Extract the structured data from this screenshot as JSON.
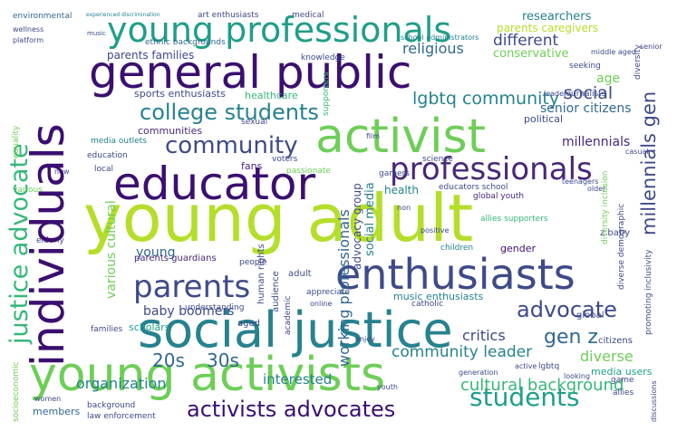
{
  "palette": {
    "background": "#ffffff",
    "colors": [
      "#3b0f70",
      "#482878",
      "#3e4a89",
      "#31688e",
      "#26828e",
      "#1f9e89",
      "#35b779",
      "#6ece58",
      "#b5de2b",
      "#d8e219"
    ]
  },
  "words": {
    "young_adult": "young adult",
    "social_justice": "social justice",
    "general_public": "general public",
    "young_activists": "young activists",
    "enthusiasts": "enthusiasts",
    "activist": "activist",
    "educator": "educator",
    "individuals": "individuals",
    "young_professionals": "young professionals",
    "professionals": "professionals",
    "justice_advocate": "justice advocate",
    "parents": "parents",
    "students": "students",
    "community": "community",
    "college_students": "college students",
    "activists_advocates": "activists advocates",
    "advocate": "advocate",
    "gen_z": "gen z",
    "lgbtq_community": "lgbtq community",
    "social": "social",
    "millennials_gen": "millennials gen",
    "twenties": "20s",
    "thirties": "30s",
    "cultural_background": "cultural background",
    "community_leader": "community leader",
    "organization": "organization",
    "interested": "interested",
    "critics": "critics",
    "diverse": "diverse",
    "different": "different",
    "conservative": "conservative",
    "religious": "religious",
    "senior_citizens": "senior citizens",
    "age": "age",
    "millennials": "millennials",
    "parents_caregivers": "parents caregivers",
    "researchers": "researchers",
    "parents_families": "parents families",
    "healthcare": "healthcare",
    "sports_enthusiasts": "sports enthusiasts",
    "communities": "communities",
    "fans": "fans",
    "young": "young",
    "baby_boomers": "baby boomers",
    "scholars": "scholars",
    "parents_guardians": "parents guardians",
    "working_professionals": "working professionals",
    "social_media": "social media",
    "advocacy_group": "advocacy group",
    "music_enthusiasts": "music enthusiasts",
    "gender": "gender",
    "political": "political",
    "health": "health",
    "various_cultural": "various cultural",
    "media_users": "media users",
    "citizens": "citizens",
    "members": "members",
    "law_enforcement": "law enforcement",
    "educators_school": "educators school",
    "global_youth": "global youth",
    "z_baby": "z baby",
    "allies_supporters": "allies supporters",
    "children": "children",
    "middle_aged": "middle aged",
    "ethnic_backgrounds": "ethnic backgrounds",
    "art_enthusiasts": "art enthusiasts",
    "environmental": "environmental",
    "experienced_discrimination": "experienced discrimination",
    "medical": "medical",
    "school_administrators": "school administrators",
    "seeking": "seeking",
    "senior": "senior",
    "journalists": "journalists",
    "leader": "leader",
    "sexual": "sexual",
    "supporters": "supporters",
    "equality": "equality",
    "wellness": "wellness",
    "platform": "platform",
    "music": "music",
    "knowledge": "knowledge",
    "media_outlets": "media outlets",
    "education": "education",
    "local": "local",
    "new": "new",
    "voters": "voters",
    "passionate": "passionate",
    "film": "film",
    "casual": "casual",
    "teenagers": "teenagers",
    "older": "older",
    "elderly": "elderly",
    "human_rights": "human rights",
    "audience": "audience",
    "people": "people",
    "understanding": "understanding",
    "aged": "aged",
    "appreciate": "appreciate",
    "online": "online",
    "catholic": "catholic",
    "adult": "adult",
    "academic": "academic",
    "enjoy": "enjoy",
    "families": "families",
    "socioeconomic": "socioeconomic",
    "women": "women",
    "background": "background",
    "generation": "generation",
    "active": "active",
    "lgbtq": "lgbtq",
    "game": "game",
    "allies": "allies",
    "looking": "looking",
    "global": "global",
    "promoting_inclusivity": "promoting inclusivity",
    "diversity_inclusion": "diversity inclusion",
    "diverse_demographic": "diverse demographic",
    "diversity": "diversity",
    "discussions": "discussions",
    "gamers": "gamers",
    "science": "science",
    "various": "various",
    "non": "non",
    "youth": "youth",
    "positive": "positive"
  }
}
